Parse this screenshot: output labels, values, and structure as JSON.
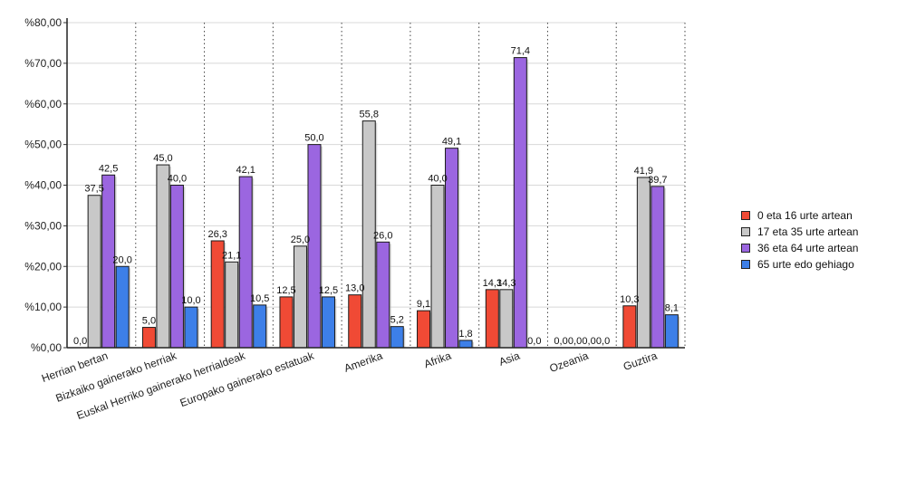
{
  "chart_data": {
    "type": "bar",
    "categories": [
      "Herrian bertan",
      "Bizkaiko gainerako herriak",
      "Euskal Herriko gainerako herrialdeak",
      "Europako gainerako estatuak",
      "Amerika",
      "Afrika",
      "Asia",
      "Ozeania",
      "Guztira"
    ],
    "series": [
      {
        "name": "0 eta 16 urte artean",
        "color": "#f04a35",
        "values": [
          0.0,
          5.0,
          26.3,
          12.5,
          13.0,
          9.1,
          14.3,
          0.0,
          10.3
        ],
        "labels": [
          "0,0",
          "5,0",
          "26,3",
          "12,5",
          "13,0",
          "9,1",
          "14,3",
          "0,0",
          "10,3"
        ]
      },
      {
        "name": "17 eta 35 urte artean",
        "color": "#c8c8c8",
        "values": [
          37.5,
          45.0,
          21.1,
          25.0,
          55.8,
          40.0,
          14.3,
          0.0,
          41.9
        ],
        "labels": [
          "37,5",
          "45,0",
          "21,1",
          "25,0",
          "55,8",
          "40,0",
          "14,3",
          "0,0",
          "41,9"
        ]
      },
      {
        "name": "36 eta 64 urte artean",
        "color": "#9b66e0",
        "values": [
          42.5,
          40.0,
          42.1,
          50.0,
          26.0,
          49.1,
          71.4,
          0.0,
          39.7
        ],
        "labels": [
          "42,5",
          "40,0",
          "42,1",
          "50,0",
          "26,0",
          "49,1",
          "71,4",
          "0,0",
          "39,7"
        ]
      },
      {
        "name": "65 urte edo gehiago",
        "color": "#3d7fe8",
        "values": [
          20.0,
          10.0,
          10.5,
          12.5,
          5.2,
          1.8,
          0.0,
          0.0,
          8.1
        ],
        "labels": [
          "20,0",
          "10,0",
          "10,5",
          "12,5",
          "5,2",
          "1,8",
          "0,0",
          "0,0",
          "8,1"
        ]
      }
    ],
    "ylim": [
      0,
      80
    ],
    "yticks": [
      0,
      10,
      20,
      30,
      40,
      50,
      60,
      70,
      80
    ],
    "ytick_labels": [
      "%0,00",
      "%10,00",
      "%20,00",
      "%30,00",
      "%40,00",
      "%50,00",
      "%60,00",
      "%70,00",
      "%80,00"
    ],
    "grid": true,
    "legend_position": "right",
    "title": "",
    "xlabel": "",
    "ylabel": ""
  }
}
